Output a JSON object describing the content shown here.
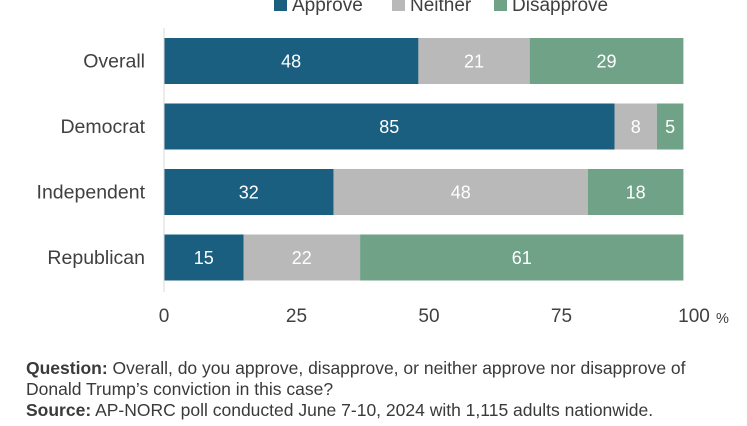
{
  "chart_data": {
    "type": "bar",
    "orientation": "horizontal",
    "stacked": true,
    "categories": [
      "Overall",
      "Democrat",
      "Independent",
      "Republican"
    ],
    "series": [
      {
        "name": "Approve",
        "color": "#1a5f80",
        "values": [
          48,
          85,
          32,
          15
        ]
      },
      {
        "name": "Neither",
        "color": "#b9b9b9",
        "values": [
          21,
          8,
          48,
          22
        ]
      },
      {
        "name": "Disapprove",
        "color": "#6fa287",
        "values": [
          29,
          5,
          18,
          61
        ]
      }
    ],
    "xlim": [
      0,
      100
    ],
    "x_ticks": [
      "0",
      "25",
      "50",
      "75",
      "100"
    ],
    "x_unit": "%",
    "legend_position": "top",
    "grid": false
  },
  "notes": {
    "question_label": "Question:",
    "question_text": "Overall, do you approve, disapprove, or neither approve nor disapprove of Donald Trump’s conviction in this case?",
    "source_label": "Source:",
    "source_text": "AP-NORC poll conducted June 7-10, 2024 with 1,115 adults nationwide."
  }
}
